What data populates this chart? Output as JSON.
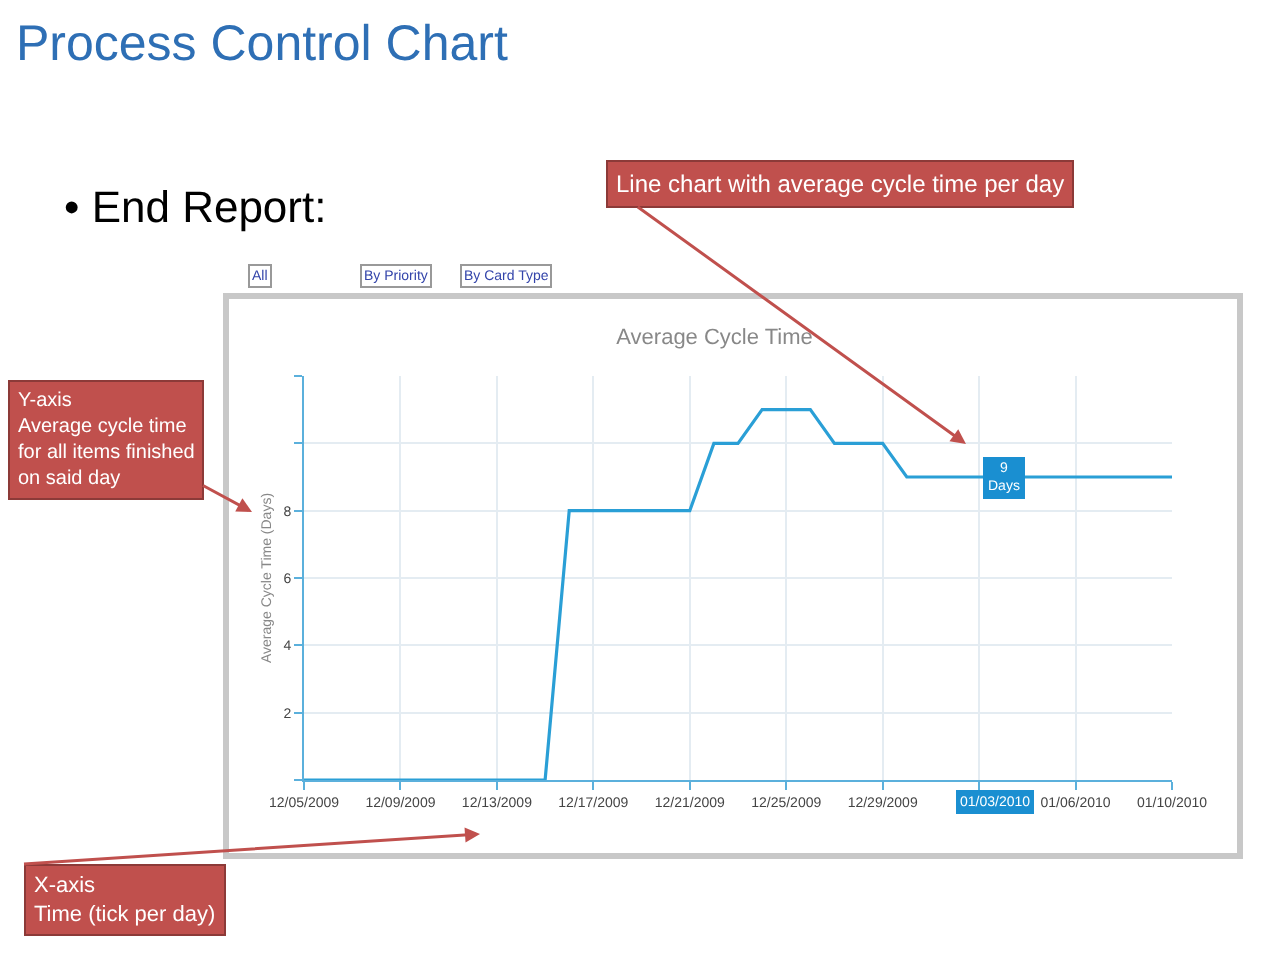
{
  "chart_data": {
    "type": "line",
    "title": "Average Cycle Time",
    "ylabel": "Average Cycle Time (Days)",
    "x": [
      "2009-12-05",
      "2009-12-06",
      "2009-12-07",
      "2009-12-08",
      "2009-12-09",
      "2009-12-10",
      "2009-12-11",
      "2009-12-12",
      "2009-12-13",
      "2009-12-14",
      "2009-12-15",
      "2009-12-16",
      "2009-12-17",
      "2009-12-18",
      "2009-12-19",
      "2009-12-20",
      "2009-12-21",
      "2009-12-22",
      "2009-12-23",
      "2009-12-24",
      "2009-12-25",
      "2009-12-26",
      "2009-12-27",
      "2009-12-28",
      "2009-12-29",
      "2009-12-30",
      "2009-12-31",
      "2010-01-01",
      "2010-01-02",
      "2010-01-03",
      "2010-01-04",
      "2010-01-05",
      "2010-01-06",
      "2010-01-07",
      "2010-01-08",
      "2010-01-09",
      "2010-01-10"
    ],
    "series": [
      {
        "color": "#2a9fd6",
        "values": [
          0,
          0,
          0,
          0,
          0,
          0,
          0,
          0,
          0,
          0,
          0,
          8,
          8,
          8,
          8,
          8,
          8,
          10,
          10,
          11,
          11,
          11,
          10,
          10,
          10,
          9,
          9,
          9,
          9,
          9,
          9,
          9,
          9,
          9,
          9,
          9,
          9
        ]
      }
    ],
    "xlim": [
      "2009-12-05",
      "2010-01-10"
    ],
    "xticks": [
      {
        "value": "2009-12-05",
        "label": "12/05/2009"
      },
      {
        "value": "2009-12-09",
        "label": "12/09/2009"
      },
      {
        "value": "2009-12-13",
        "label": "12/13/2009"
      },
      {
        "value": "2009-12-17",
        "label": "12/17/2009"
      },
      {
        "value": "2009-12-21",
        "label": "12/21/2009"
      },
      {
        "value": "2009-12-25",
        "label": "12/25/2009"
      },
      {
        "value": "2009-12-29",
        "label": "12/29/2009"
      },
      {
        "value": "2010-01-02",
        "label": null
      },
      {
        "value": "2010-01-06",
        "label": "01/06/2010"
      },
      {
        "value": "2010-01-10",
        "label": "01/10/2010"
      }
    ],
    "ylim": [
      0,
      12
    ],
    "yticks": [
      {
        "value": 0,
        "label": null
      },
      2,
      4,
      6,
      8,
      {
        "value": 10,
        "label": null
      },
      {
        "value": 12,
        "label": null
      }
    ],
    "grid": true,
    "legend": false,
    "marker": "none",
    "line_style": "solid",
    "annotations": [
      "Process Control Chart",
      "• End Report:",
      "Line chart with average cycle time per day",
      "Y-axis\nAverage cycle time\nfor all items finished\non said day",
      "X-axis\nTime (tick per day)",
      "All",
      "By Priority",
      "By Card Type",
      "01/03/2010",
      {
        "text": "9\nDays",
        "x": "2010-01-03",
        "y": 9
      }
    ]
  }
}
